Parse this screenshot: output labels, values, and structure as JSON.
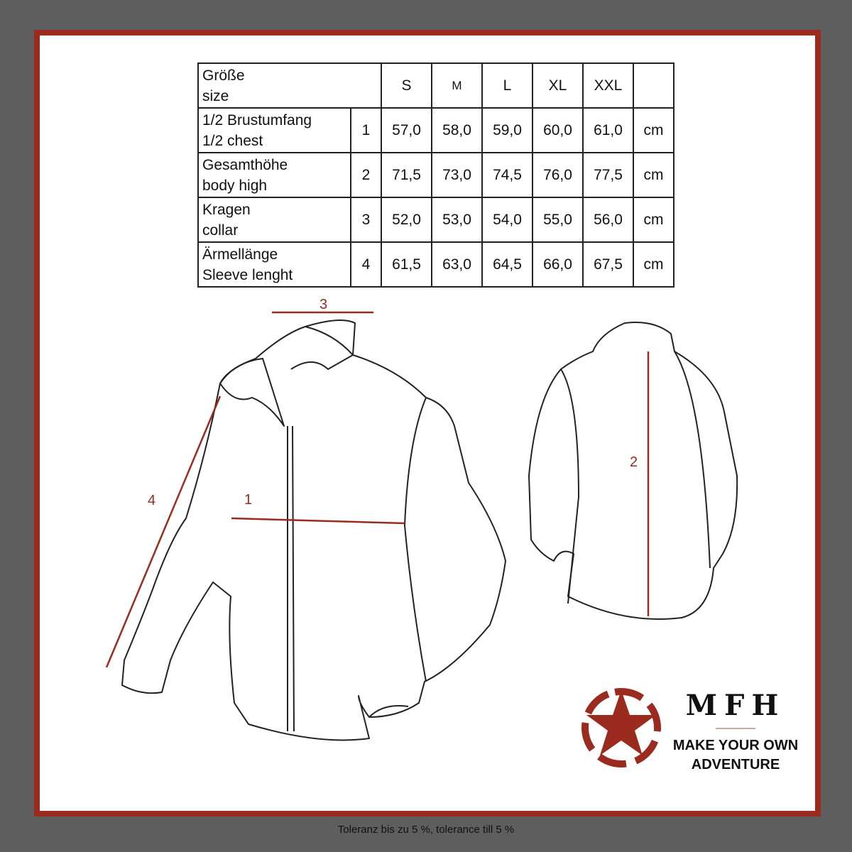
{
  "table": {
    "header": {
      "label_de": "Größe",
      "label_en": "size",
      "sizes": [
        "S",
        "M",
        "L",
        "XL",
        "XXL"
      ]
    },
    "rows": [
      {
        "de": "1/2 Brustumfang",
        "en": "1/2 chest",
        "num": "1",
        "values": [
          "57,0",
          "58,0",
          "59,0",
          "60,0",
          "61,0"
        ],
        "unit": "cm"
      },
      {
        "de": "Gesamthöhe",
        "en": "body high",
        "num": "2",
        "values": [
          "71,5",
          "73,0",
          "74,5",
          "76,0",
          "77,5"
        ],
        "unit": "cm"
      },
      {
        "de": "Kragen",
        "en": "collar",
        "num": "3",
        "values": [
          "52,0",
          "53,0",
          "54,0",
          "55,0",
          "56,0"
        ],
        "unit": "cm"
      },
      {
        "de": "Ärmellänge",
        "en": "Sleeve lenght",
        "num": "4",
        "values": [
          "61,5",
          "63,0",
          "64,5",
          "66,0",
          "67,5"
        ],
        "unit": "cm"
      }
    ]
  },
  "diagram": {
    "labels": [
      "1",
      "2",
      "3",
      "4"
    ],
    "accent": "#9b2a1f"
  },
  "brand": {
    "logo": "MFH",
    "tagline_1": "MAKE YOUR OWN",
    "tagline_2": "ADVENTURE",
    "icon": "star-in-dashed-circle-icon"
  },
  "footer": "Toleranz bis zu 5 %, tolerance till 5 %"
}
